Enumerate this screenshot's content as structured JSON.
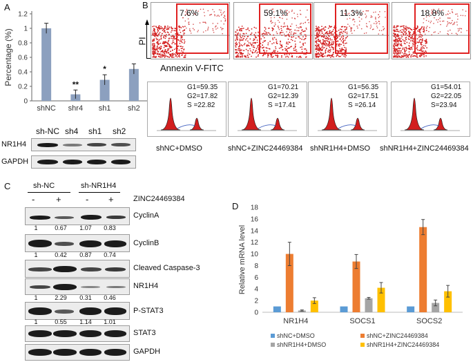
{
  "panel_labels": {
    "a": "A",
    "b": "B",
    "c": "C",
    "d": "D"
  },
  "panelA": {
    "chart_data": {
      "type": "bar",
      "categories": [
        "shNC",
        "shr4",
        "sh1",
        "sh2"
      ],
      "values": [
        1.0,
        0.09,
        0.29,
        0.44
      ],
      "errors": [
        0.07,
        0.06,
        0.07,
        0.07
      ],
      "significance": [
        "",
        "**",
        "*",
        ""
      ],
      "ylabel": "Percentage (%)",
      "ylim": [
        0,
        1.2
      ],
      "yticks": [
        "0",
        "0.2",
        "0.4",
        "0.6",
        "0.8",
        "1",
        "1.2"
      ],
      "color": "#8ca0bf"
    },
    "blot": {
      "lanes": [
        "sh-NC",
        "sh4",
        "sh1",
        "sh2"
      ],
      "rows": [
        "NR1H4",
        "GAPDH"
      ]
    }
  },
  "panelB": {
    "flow_axis_y": "PI",
    "flow_axis_x": "Annexin V-FITC",
    "flow_percent": [
      "7.6%",
      "59.1%",
      "11.3%",
      "18.8%"
    ],
    "highlight_color": "#e02020",
    "cycle": [
      {
        "g1": "G1=59.35",
        "g2": "G2=17.82",
        "s": "S =22.82"
      },
      {
        "g1": "G1=70.21",
        "g2": "G2=12.39",
        "s": "S =17.41"
      },
      {
        "g1": "G1=56.35",
        "g2": "G2=17.51",
        "s": "S =26.14"
      },
      {
        "g1": "G1=54.01",
        "g2": "G2=22.05",
        "s": "S=23.94"
      }
    ],
    "conditions": [
      "shNC+DMSO",
      "shNC+ZINC24469384",
      "shNR1H4+DMSO",
      "shNR1H4+ZINC24469384"
    ]
  },
  "panelC": {
    "group_labels": [
      "sh-NC",
      "sh-NR1H4"
    ],
    "treatment_label": "ZINC24469384",
    "treatment_marks": [
      "-",
      "+",
      "-",
      "+"
    ],
    "rows": [
      {
        "name": "CyclinA",
        "values": [
          "1",
          "0.67",
          "1.07",
          "0.83"
        ]
      },
      {
        "name": "CyclinB",
        "values": [
          "1",
          "0.42",
          "0.87",
          "0.74"
        ]
      },
      {
        "name": "Cleaved Caspase-3",
        "values": []
      },
      {
        "name": "NR1H4",
        "values": [
          "1",
          "2.29",
          "0.31",
          "0.46"
        ]
      },
      {
        "name": "P-STAT3",
        "values": [
          "1",
          "0.55",
          "1.14",
          "1.01"
        ]
      },
      {
        "name": "STAT3",
        "values": []
      },
      {
        "name": "GAPDH",
        "values": []
      }
    ]
  },
  "panelD": {
    "chart_data": {
      "type": "bar",
      "categories": [
        "NR1H4",
        "SOCS1",
        "SOCS2"
      ],
      "ylabel": "Relative mRNA level",
      "ylim": [
        0,
        18
      ],
      "yticks": [
        "0",
        "2",
        "4",
        "6",
        "8",
        "10",
        "12",
        "14",
        "16",
        "18"
      ],
      "series": [
        {
          "name": "shNC+DMSO",
          "color": "#5b9bd5",
          "values": [
            1.0,
            1.0,
            1.0
          ],
          "errors": [
            0,
            0,
            0
          ]
        },
        {
          "name": "shNC+ZINC24469384",
          "color": "#ed7d31",
          "values": [
            10.0,
            8.7,
            14.6
          ],
          "errors": [
            2.0,
            1.2,
            1.3
          ]
        },
        {
          "name": "shNR1H4+DMSO",
          "color": "#a5a5a5",
          "values": [
            0.3,
            2.4,
            1.6
          ],
          "errors": [
            0.1,
            0.15,
            0.5
          ]
        },
        {
          "name": "shNR1H4+ZINC24469384",
          "color": "#ffc000",
          "values": [
            2.0,
            4.2,
            3.6
          ],
          "errors": [
            0.5,
            0.9,
            1.0
          ]
        }
      ]
    }
  }
}
